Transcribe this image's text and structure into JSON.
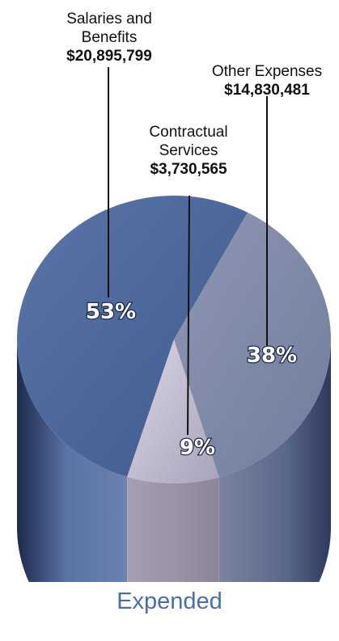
{
  "chart_data": {
    "type": "pie",
    "title": "",
    "caption": "Expended",
    "slices": [
      {
        "name_lines": [
          "Salaries and",
          "Benefits"
        ],
        "amount": "$20,895,799",
        "percent_label": "53%",
        "value": 20895799,
        "percent": 53
      },
      {
        "name_lines": [
          "Contractual",
          "Services"
        ],
        "amount": "$3,730,565",
        "percent_label": "9%",
        "value": 3730565,
        "percent": 9
      },
      {
        "name_lines": [
          "Other Expenses"
        ],
        "amount": "$14,830,481",
        "percent_label": "38%",
        "value": 14830481,
        "percent": 38
      }
    ],
    "colors": {
      "salaries": "#4a6699",
      "contractual": "#b8b2c4",
      "other": "#8c97b4"
    }
  }
}
